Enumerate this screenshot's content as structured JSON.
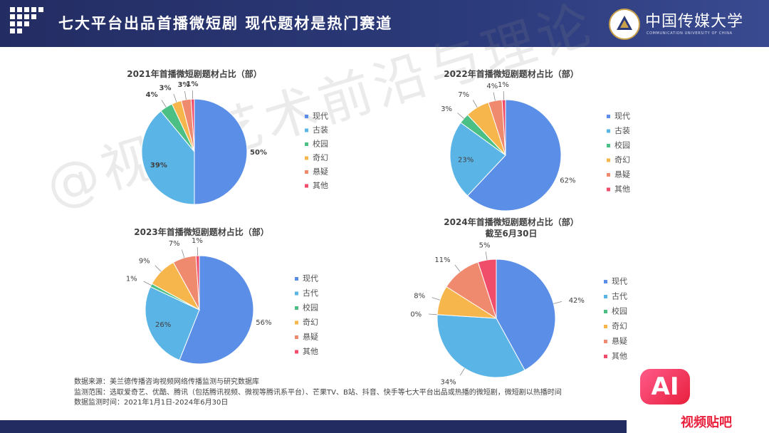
{
  "header": {
    "title": "七大平台出品首播微短剧  现代题材是热门赛道"
  },
  "logo": {
    "name_cn": "中国传媒大学",
    "name_en": "COMMUNICATION UNIVERSITY OF CHINA"
  },
  "watermark": "@视听艺术前沿与理论",
  "chart_data": [
    {
      "type": "pie",
      "title": "2021年首播微短剧题材占比（部）",
      "subtitle": "",
      "categories": [
        "现代",
        "古装",
        "校园",
        "奇幻",
        "悬疑",
        "其他"
      ],
      "values": [
        50,
        39,
        4,
        3,
        3,
        1
      ],
      "labels": [
        "50%",
        "39%",
        "4%",
        "3%",
        "3%",
        "1%"
      ],
      "legend": "right"
    },
    {
      "type": "pie",
      "title": "2022年首播微短剧题材占比（部）",
      "subtitle": "",
      "categories": [
        "现代",
        "古装",
        "校园",
        "奇幻",
        "悬疑",
        "其他"
      ],
      "values": [
        62,
        23,
        3,
        7,
        4,
        1
      ],
      "labels": [
        "62%",
        "23%",
        "3%",
        "7%",
        "4%",
        "1%"
      ],
      "legend": "right"
    },
    {
      "type": "pie",
      "title": "2023年首播微短剧题材占比（部）",
      "subtitle": "",
      "categories": [
        "现代",
        "古代",
        "校园",
        "奇幻",
        "悬疑",
        "其他"
      ],
      "values": [
        56,
        26,
        1,
        9,
        7,
        1
      ],
      "labels": [
        "56%",
        "26%",
        "1%",
        "9%",
        "7%",
        "1%"
      ],
      "legend": "right"
    },
    {
      "type": "pie",
      "title": "2024年首播微短剧题材占比（部）",
      "subtitle": "截至6月30日",
      "categories": [
        "现代",
        "古代",
        "校园",
        "奇幻",
        "悬疑",
        "其他"
      ],
      "values": [
        42,
        34,
        0,
        8,
        11,
        5
      ],
      "labels": [
        "42%",
        "34%",
        "0%",
        "8%",
        "11%",
        "5%"
      ],
      "legend": "right"
    }
  ],
  "colors": [
    "#5b8ee6",
    "#5ab4e6",
    "#4cc084",
    "#f7b64c",
    "#f08a6e",
    "#f04d6a"
  ],
  "notes": [
    "数据来源：美兰德传播咨询视频网络传播监测与研究数据库",
    "监测范围：选取爱奇艺、优酷、腾讯（包括腾讯视频、微视等腾讯系平台）、芒果TV、B站、抖音、快手等七大平台出品或热播的微短剧，微短剧以热播时间",
    "数据监测时间：2021年1月1日-2024年6月30日"
  ],
  "badge": {
    "mark": "AI",
    "text": "视频贴吧"
  }
}
